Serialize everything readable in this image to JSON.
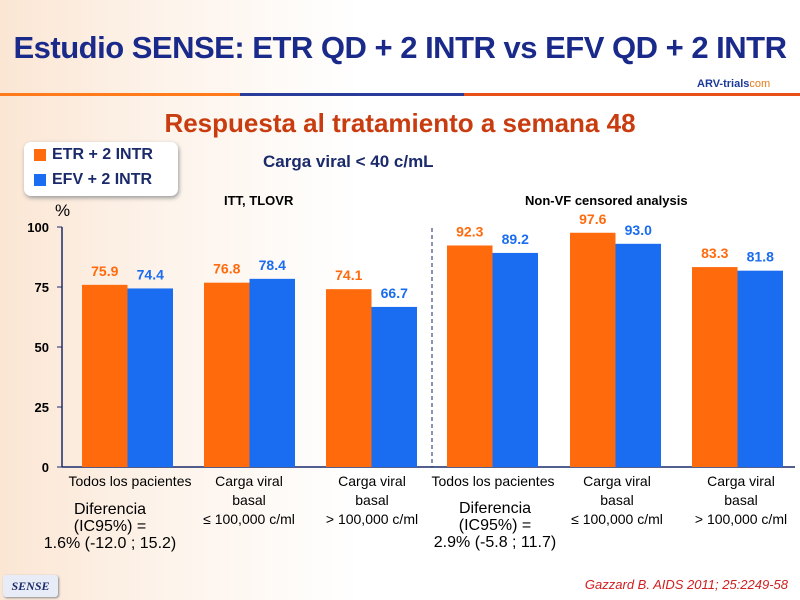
{
  "title": "Estudio SENSE: ETR QD + 2 INTR vs EFV QD + 2 INTR",
  "logo": {
    "main": "ARV-trials",
    "suffix": "com"
  },
  "subtitle": "Respuesta al tratamiento a semana 48",
  "viral_load_label": "Carga viral < 40 c/mL",
  "colors": {
    "etr": "#ff6a0d",
    "efv": "#1a6cf0"
  },
  "chart_data": {
    "type": "bar",
    "ylabel": "%",
    "ylim": [
      0,
      100
    ],
    "yticks": [
      "0",
      "25",
      "50",
      "75",
      "100"
    ],
    "section_labels": [
      "ITT, TLOVR",
      "Non-VF censored analysis"
    ],
    "categories": [
      "Todos los pacientes",
      "Carga viral basal ≤ 100,000 c/ml",
      "Carga viral basal > 100,000 c/ml",
      "Todos los pacientes",
      "Carga viral basal ≤ 100,000 c/ml",
      "Carga viral basal > 100,000 c/ml"
    ],
    "series": [
      {
        "name": "ETR + 2 INTR",
        "values": [
          75.9,
          76.8,
          74.1,
          92.3,
          97.6,
          83.3
        ],
        "labels": [
          "75.9",
          "76.8",
          "74.1",
          "92.3",
          "97.6",
          "83.3"
        ]
      },
      {
        "name": "EFV + 2 INTR",
        "values": [
          74.4,
          78.4,
          66.7,
          89.2,
          93.0,
          81.8
        ],
        "labels": [
          "74.4",
          "78.4",
          "66.7",
          "89.2",
          "93.0",
          "81.8"
        ]
      }
    ]
  },
  "xlabels": [
    [
      "Todos los pacientes"
    ],
    [
      "Carga viral",
      "basal",
      "≤ 100,000 c/ml"
    ],
    [
      "Carga viral",
      "basal",
      "> 100,000 c/ml"
    ],
    [
      "Todos los pacientes"
    ],
    [
      "Carga viral",
      "basal",
      "≤ 100,000 c/ml"
    ],
    [
      "Carga viral",
      "basal",
      "> 100,000 c/ml"
    ]
  ],
  "differences": [
    [
      "Diferencia",
      "(IC95%) =",
      "1.6% (-12.0 ; 15.2)"
    ],
    [
      "Diferencia",
      "(IC95%) =",
      "2.9% (-5.8 ; 11.7)"
    ]
  ],
  "footer": {
    "badge": "SENSE",
    "citation": "Gazzard B. AIDS 2011; 25:2249-58"
  }
}
